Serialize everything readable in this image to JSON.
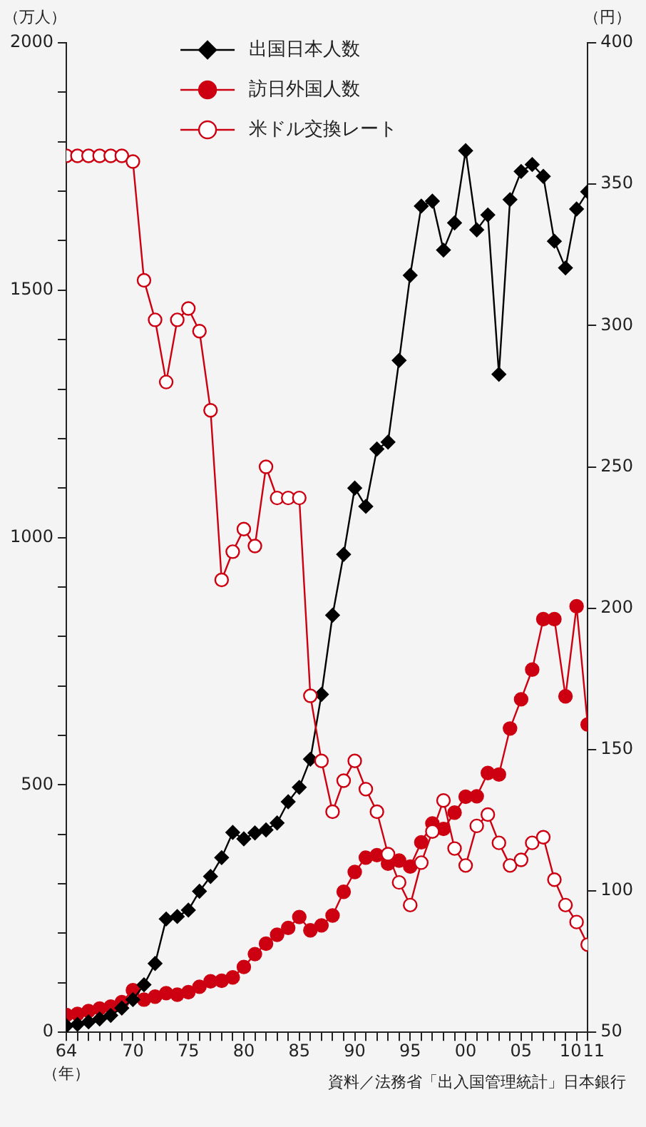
{
  "chart_data": {
    "type": "line",
    "ylabel": "（万人）",
    "y2label": "（円）",
    "xlabel": "（年）",
    "x": [
      1964,
      1965,
      1966,
      1967,
      1968,
      1969,
      1970,
      1971,
      1972,
      1973,
      1974,
      1975,
      1976,
      1977,
      1978,
      1979,
      1980,
      1981,
      1982,
      1983,
      1984,
      1985,
      1986,
      1987,
      1988,
      1989,
      1990,
      1991,
      1992,
      1993,
      1994,
      1995,
      1996,
      1997,
      1998,
      1999,
      2000,
      2001,
      2002,
      2003,
      2004,
      2005,
      2006,
      2007,
      2008,
      2009,
      2010,
      2011
    ],
    "xlim": [
      1964,
      2011
    ],
    "xticks": [
      {
        "value": 1964,
        "label": "64"
      },
      {
        "value": 1965,
        "label": null
      },
      {
        "value": 1966,
        "label": null
      },
      {
        "value": 1967,
        "label": null
      },
      {
        "value": 1968,
        "label": null
      },
      {
        "value": 1969,
        "label": null
      },
      {
        "value": 1970,
        "label": "70"
      },
      {
        "value": 1971,
        "label": null
      },
      {
        "value": 1972,
        "label": null
      },
      {
        "value": 1973,
        "label": null
      },
      {
        "value": 1974,
        "label": null
      },
      {
        "value": 1975,
        "label": "75"
      },
      {
        "value": 1976,
        "label": null
      },
      {
        "value": 1977,
        "label": null
      },
      {
        "value": 1978,
        "label": null
      },
      {
        "value": 1979,
        "label": null
      },
      {
        "value": 1980,
        "label": "80"
      },
      {
        "value": 1981,
        "label": null
      },
      {
        "value": 1982,
        "label": null
      },
      {
        "value": 1983,
        "label": null
      },
      {
        "value": 1984,
        "label": null
      },
      {
        "value": 1985,
        "label": "85"
      },
      {
        "value": 1986,
        "label": null
      },
      {
        "value": 1987,
        "label": null
      },
      {
        "value": 1988,
        "label": null
      },
      {
        "value": 1989,
        "label": null
      },
      {
        "value": 1990,
        "label": "90"
      },
      {
        "value": 1991,
        "label": null
      },
      {
        "value": 1992,
        "label": null
      },
      {
        "value": 1993,
        "label": null
      },
      {
        "value": 1994,
        "label": null
      },
      {
        "value": 1995,
        "label": "95"
      },
      {
        "value": 1996,
        "label": null
      },
      {
        "value": 1997,
        "label": null
      },
      {
        "value": 1998,
        "label": null
      },
      {
        "value": 1999,
        "label": null
      },
      {
        "value": 2000,
        "label": "00"
      },
      {
        "value": 2001,
        "label": null
      },
      {
        "value": 2002,
        "label": null
      },
      {
        "value": 2003,
        "label": null
      },
      {
        "value": 2004,
        "label": null
      },
      {
        "value": 2005,
        "label": "05"
      },
      {
        "value": 2006,
        "label": null
      },
      {
        "value": 2007,
        "label": null
      },
      {
        "value": 2008,
        "label": null
      },
      {
        "value": 2009,
        "label": null
      },
      {
        "value": 2010,
        "label": "10"
      },
      {
        "value": 2011,
        "label": "11"
      }
    ],
    "ylim": [
      0,
      2000
    ],
    "yticks": [
      0,
      {
        "value": 100,
        "label": null
      },
      {
        "value": 200,
        "label": null
      },
      {
        "value": 300,
        "label": null
      },
      {
        "value": 400,
        "label": null
      },
      500,
      {
        "value": 600,
        "label": null
      },
      {
        "value": 700,
        "label": null
      },
      {
        "value": 800,
        "label": null
      },
      {
        "value": 900,
        "label": null
      },
      1000,
      {
        "value": 1100,
        "label": null
      },
      {
        "value": 1200,
        "label": null
      },
      {
        "value": 1300,
        "label": null
      },
      {
        "value": 1400,
        "label": null
      },
      1500,
      {
        "value": 1600,
        "label": null
      },
      {
        "value": 1700,
        "label": null
      },
      {
        "value": 1800,
        "label": null
      },
      {
        "value": 1900,
        "label": null
      },
      2000
    ],
    "y2lim": [
      50,
      400
    ],
    "y2ticks": [
      50,
      100,
      150,
      200,
      250,
      300,
      350,
      400
    ],
    "grid": false,
    "legend": "top",
    "line_style": "solid",
    "series": [
      {
        "name": "出国日本人数",
        "color": "#000000",
        "marker": "diamond",
        "values": [
          13,
          16,
          21,
          27,
          34,
          49,
          66,
          96,
          139,
          229,
          234,
          247,
          285,
          315,
          353,
          404,
          391,
          403,
          409,
          423,
          466,
          495,
          552,
          683,
          843,
          966,
          1100,
          1063,
          1179,
          1193,
          1358,
          1530,
          1670,
          1680,
          1581,
          1636,
          1782,
          1622,
          1652,
          1330,
          1683,
          1740,
          1754,
          1730,
          1599,
          1545,
          1664,
          1699
        ]
      },
      {
        "name": "訪日外国人数",
        "color": "#cc0011",
        "marker": "circle",
        "values": [
          35,
          37,
          43,
          48,
          52,
          61,
          85,
          66,
          72,
          79,
          76,
          81,
          92,
          103,
          104,
          111,
          132,
          158,
          179,
          197,
          211,
          233,
          206,
          216,
          236,
          284,
          324,
          353,
          358,
          341,
          347,
          335,
          384,
          422,
          411,
          444,
          476,
          477,
          524,
          521,
          614,
          673,
          733,
          835,
          835,
          679,
          861,
          622
        ]
      },
      {
        "name": "米ドル交換レート",
        "color": "#cc0011",
        "marker": "circle",
        "axis": "y2",
        "values": [
          360,
          360,
          360,
          360,
          360,
          360,
          358,
          316,
          302,
          280,
          302,
          306,
          298,
          270,
          210,
          220,
          228,
          222,
          250,
          239,
          239,
          239,
          169,
          146,
          128,
          139,
          146,
          136,
          128,
          113,
          103,
          95,
          110,
          121,
          132,
          115,
          109,
          123,
          127,
          117,
          109,
          111,
          117,
          119,
          104,
          95,
          89,
          81
        ]
      }
    ],
    "annotations": [
      "資料／法務省「出入国管理統計」日本銀行"
    ]
  }
}
